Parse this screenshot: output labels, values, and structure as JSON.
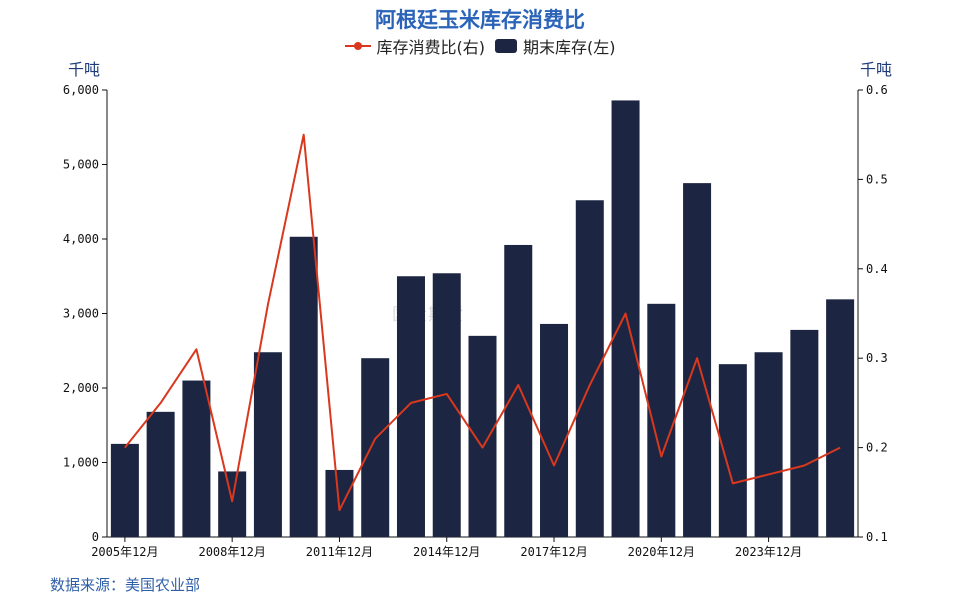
{
  "title": "阿根廷玉米库存消费比",
  "legend": {
    "line_label": "库存消费比(右)",
    "bar_label": "期末库存(左)"
  },
  "left_unit": "千吨",
  "right_unit": "千吨",
  "source": "数据来源：美国农业部",
  "watermark": "国投期货",
  "colors": {
    "bar": "#1c2541",
    "line": "#d9381e",
    "title": "#2a63b8"
  },
  "chart_data": {
    "type": "bar",
    "title": "阿根廷玉米库存消费比",
    "categories": [
      "2005年12月",
      "2006年12月",
      "2007年12月",
      "2008年12月",
      "2009年12月",
      "2010年12月",
      "2011年12月",
      "2012年12月",
      "2013年12月",
      "2014年12月",
      "2015年12月",
      "2016年12月",
      "2017年12月",
      "2018年12月",
      "2019年12月",
      "2020年12月",
      "2021年12月",
      "2022年12月",
      "2023年12月",
      "2024年12月",
      "2025年12月"
    ],
    "x_tick_labels": [
      "2005年12月",
      "2008年12月",
      "2011年12月",
      "2014年12月",
      "2017年12月",
      "2020年12月",
      "2023年12月"
    ],
    "x_tick_indices": [
      0,
      3,
      6,
      9,
      12,
      15,
      18
    ],
    "series": [
      {
        "name": "期末库存(左)",
        "axis": "left",
        "type": "bar",
        "values": [
          1250,
          1680,
          2100,
          880,
          2480,
          4030,
          900,
          2400,
          3500,
          3540,
          2700,
          3920,
          2860,
          4520,
          5860,
          3130,
          4750,
          2320,
          2480,
          2780,
          3190
        ]
      },
      {
        "name": "库存消费比(右)",
        "axis": "right",
        "type": "line",
        "values": [
          0.2,
          0.25,
          0.31,
          0.14,
          0.36,
          0.55,
          0.13,
          0.21,
          0.25,
          0.26,
          0.2,
          0.27,
          0.18,
          0.27,
          0.35,
          0.19,
          0.3,
          0.16,
          0.17,
          0.18,
          0.2
        ]
      }
    ],
    "left_axis": {
      "range": [
        0,
        6000
      ],
      "ticks": [
        0,
        1000,
        2000,
        3000,
        4000,
        5000,
        6000
      ],
      "tick_labels": [
        "0",
        "1,000",
        "2,000",
        "3,000",
        "4,000",
        "5,000",
        "6,000"
      ]
    },
    "right_axis": {
      "range": [
        0.1,
        0.6
      ],
      "ticks": [
        0.1,
        0.2,
        0.3,
        0.4,
        0.5,
        0.6
      ],
      "tick_labels": [
        "0.1",
        "0.2",
        "0.3",
        "0.4",
        "0.5",
        "0.6"
      ]
    },
    "grid": false,
    "legend_position": "top-center"
  }
}
